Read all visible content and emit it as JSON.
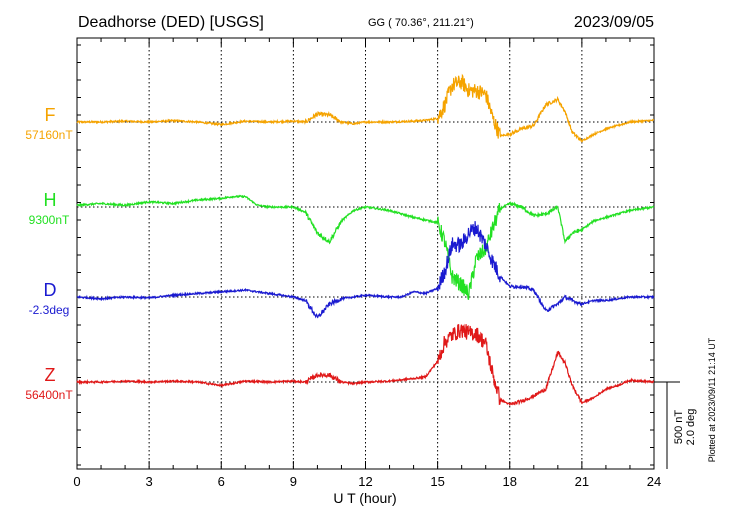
{
  "header": {
    "station": "Deadhorse (DED)  [USGS]",
    "coords": "GG ( 70.36°, 211.21°)",
    "date": "2023/09/05"
  },
  "plotted_note": "Plotted at 2023/09/11 21:14 UT",
  "scale": {
    "nt": "500 nT",
    "deg": "2.0 deg"
  },
  "chart_data": {
    "type": "line",
    "title": "Deadhorse (DED)  [USGS]",
    "xlabel": "U T (hour)",
    "xlim": [
      0,
      24
    ],
    "xticks": [
      "0",
      "3",
      "6",
      "9",
      "12",
      "15",
      "18",
      "21",
      "24"
    ],
    "grid": true,
    "series": [
      {
        "name": "F",
        "baseline_label": "57160nT",
        "color": "#f5a300",
        "x": [
          0,
          1,
          2,
          3,
          4,
          5,
          6,
          7,
          8,
          9,
          9.5,
          10,
          10.5,
          11,
          11.5,
          12,
          13,
          14,
          14.5,
          15,
          15.3,
          15.6,
          16,
          16.3,
          16.6,
          17,
          17.3,
          17.6,
          18,
          18.5,
          19,
          19.5,
          20,
          20.3,
          20.6,
          21,
          21.5,
          22,
          22.5,
          23,
          24
        ],
        "values": [
          0,
          0,
          5,
          0,
          8,
          0,
          -15,
          5,
          0,
          5,
          0,
          45,
          40,
          0,
          -10,
          0,
          0,
          5,
          10,
          20,
          100,
          210,
          230,
          180,
          180,
          160,
          20,
          -80,
          -70,
          -40,
          -20,
          100,
          130,
          60,
          -60,
          -110,
          -70,
          -40,
          -20,
          0,
          10
        ]
      },
      {
        "name": "H",
        "baseline_label": "9300nT",
        "color": "#22e022",
        "x": [
          0,
          1,
          2,
          3,
          4,
          5,
          6,
          6.5,
          7,
          7.5,
          8,
          9,
          9.5,
          10,
          10.5,
          11,
          11.5,
          12,
          13,
          14,
          15,
          15.3,
          15.6,
          16,
          16.3,
          16.6,
          17,
          17.3,
          17.6,
          18,
          18.5,
          19,
          19.5,
          20,
          20.3,
          20.6,
          21,
          21.5,
          22,
          22.5,
          23,
          24
        ],
        "values": [
          10,
          20,
          10,
          30,
          20,
          40,
          50,
          60,
          60,
          10,
          0,
          0,
          -30,
          -150,
          -200,
          -80,
          -20,
          0,
          -20,
          -60,
          -90,
          -200,
          -400,
          -450,
          -500,
          -300,
          -240,
          -120,
          -10,
          20,
          0,
          -50,
          -40,
          0,
          -200,
          -150,
          -130,
          -80,
          -60,
          -40,
          -20,
          0
        ]
      },
      {
        "name": "D",
        "baseline_label": "-2.3deg",
        "color": "#1a1ad0",
        "x": [
          0,
          1,
          2,
          3,
          4,
          5,
          6,
          7,
          8,
          9,
          9.5,
          10,
          10.5,
          11,
          11.5,
          12,
          13,
          13.5,
          14,
          14.5,
          15,
          15.3,
          15.6,
          16,
          16.3,
          16.6,
          17,
          17.3,
          17.6,
          18,
          18.5,
          19,
          19.5,
          20,
          20.3,
          20.6,
          21,
          21.5,
          22,
          22.5,
          23,
          24
        ],
        "values": [
          0,
          -10,
          0,
          -5,
          10,
          20,
          30,
          40,
          20,
          0,
          -20,
          -120,
          -40,
          -10,
          0,
          10,
          0,
          0,
          30,
          20,
          50,
          150,
          300,
          300,
          370,
          400,
          300,
          200,
          120,
          60,
          60,
          40,
          -80,
          -40,
          0,
          -20,
          -40,
          -20,
          -20,
          -10,
          0,
          0
        ]
      },
      {
        "name": "Z",
        "baseline_label": "56400nT",
        "color": "#e01818",
        "x": [
          0,
          1,
          2,
          3,
          4,
          5,
          6,
          7,
          8,
          9,
          9.5,
          10,
          10.5,
          11,
          11.5,
          12,
          13,
          14,
          14.5,
          15,
          15.3,
          15.6,
          16,
          16.3,
          16.6,
          17,
          17.3,
          17.6,
          18,
          18.5,
          19,
          19.5,
          20,
          20.3,
          20.6,
          21,
          21.5,
          22,
          22.5,
          23,
          24
        ],
        "values": [
          0,
          0,
          5,
          0,
          5,
          0,
          -20,
          5,
          0,
          5,
          0,
          40,
          40,
          0,
          -10,
          0,
          5,
          20,
          30,
          120,
          230,
          270,
          300,
          280,
          280,
          220,
          40,
          -100,
          -130,
          -110,
          -80,
          -40,
          170,
          110,
          -20,
          -120,
          -90,
          -40,
          -20,
          10,
          0
        ]
      }
    ]
  }
}
